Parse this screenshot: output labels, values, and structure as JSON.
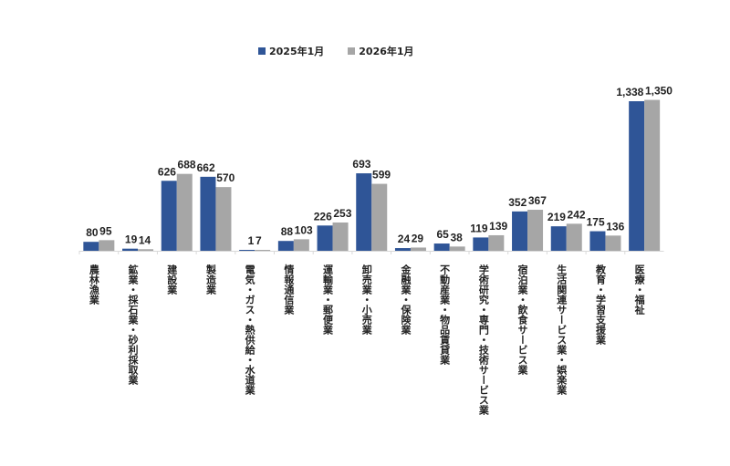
{
  "chart_data": {
    "type": "bar",
    "title": "",
    "xlabel": "",
    "ylabel": "",
    "ylim": [
      0,
      1350
    ],
    "grid": false,
    "legend_position": "top-center",
    "categories": [
      "農林漁業",
      "鉱業・採石業・砂利採取業",
      "建設業",
      "製造業",
      "電気・ガス・熱供給・水道業",
      "情報通信業",
      "運輸業・郵便業",
      "卸売業・小売業",
      "金融業・保険業",
      "不動産業・物品賃貸業",
      "学術研究・専門・技術サービス業",
      "宿泊業・飲食サービス業",
      "生活関連サービス業・娯楽業",
      "教育・学習支援業",
      "医療・福祉"
    ],
    "series": [
      {
        "name": "2025年1月",
        "color": "#2F5597",
        "values": [
          80,
          19,
          626,
          662,
          1,
          88,
          226,
          693,
          24,
          65,
          119,
          352,
          219,
          175,
          1338
        ]
      },
      {
        "name": "2026年1月",
        "color": "#A6A6A6",
        "values": [
          95,
          14,
          688,
          570,
          7,
          103,
          253,
          599,
          29,
          38,
          139,
          367,
          242,
          136,
          1350
        ]
      }
    ]
  }
}
